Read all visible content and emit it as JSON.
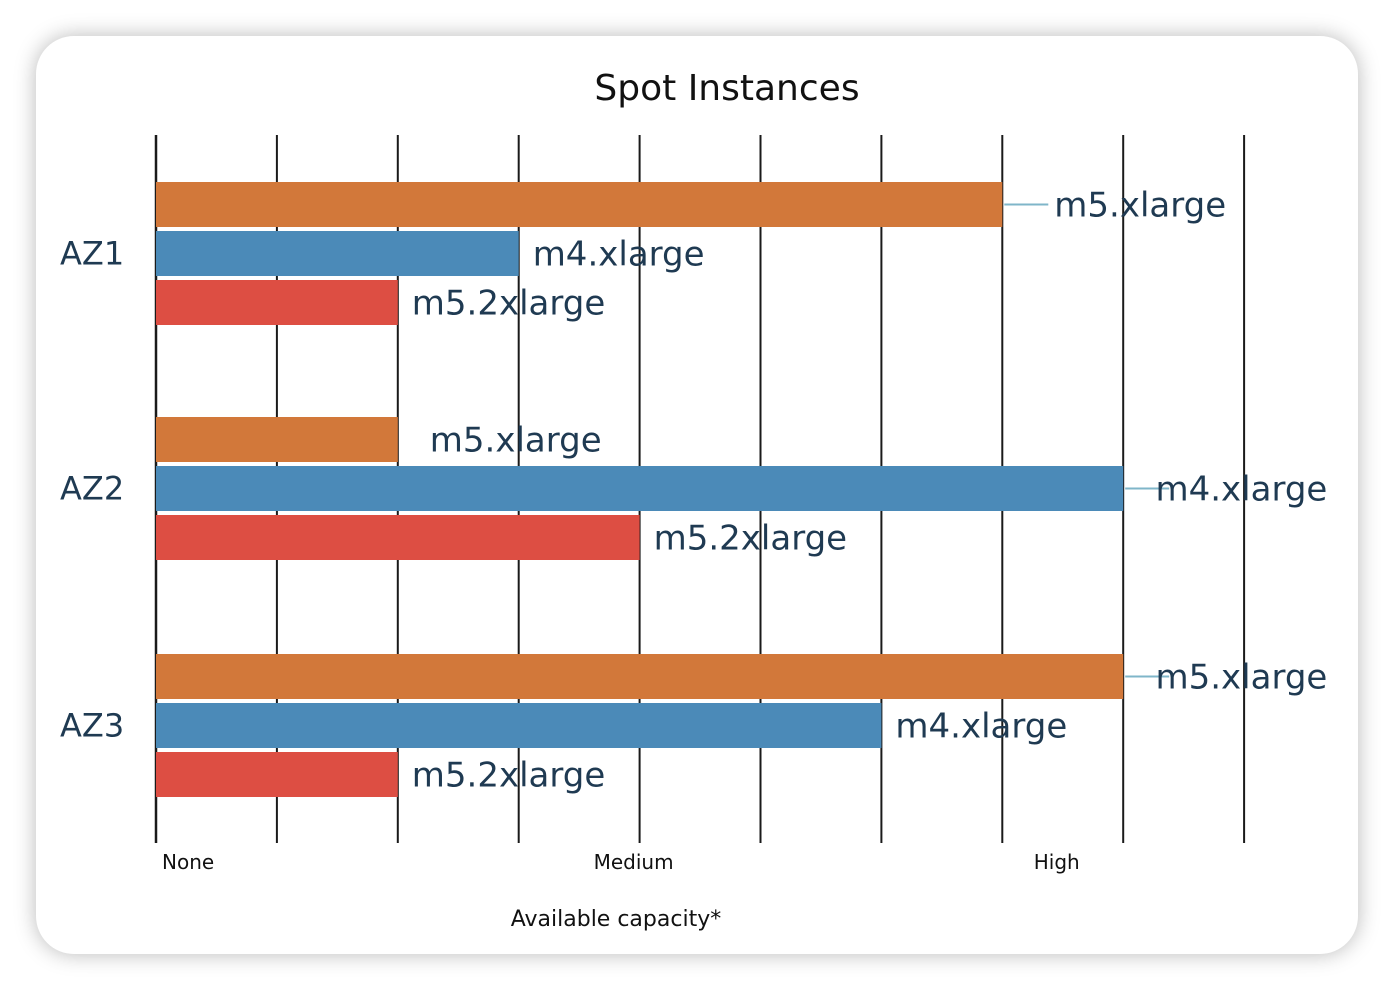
{
  "chart_data": {
    "type": "bar",
    "orientation": "horizontal",
    "title": "Spot Instances",
    "xlabel": "Available capacity*",
    "xlim": [
      0,
      9
    ],
    "x_tick_labels": [
      {
        "value": 0,
        "label": "None"
      },
      {
        "value": 4,
        "label": "Medium"
      },
      {
        "value": 7.5,
        "label": "High"
      }
    ],
    "grid": true,
    "categories": [
      "AZ1",
      "AZ2",
      "AZ3"
    ],
    "series": [
      {
        "name": "m5.xlarge",
        "color": "#d2783a",
        "values": [
          7,
          2,
          8
        ]
      },
      {
        "name": "m4.xlarge",
        "color": "#4b8ab8",
        "values": [
          3,
          8,
          6
        ]
      },
      {
        "name": "m5.2xlarge",
        "color": "#dd4e43",
        "values": [
          2,
          4,
          2
        ]
      }
    ],
    "bar_labels": [
      [
        "m5.xlarge",
        "m4.xlarge",
        "m5.2xlarge"
      ],
      [
        "m5.xlarge",
        "m4.xlarge",
        "m5.2xlarge"
      ],
      [
        "m5.xlarge",
        "m4.xlarge",
        "m5.2xlarge"
      ]
    ]
  }
}
